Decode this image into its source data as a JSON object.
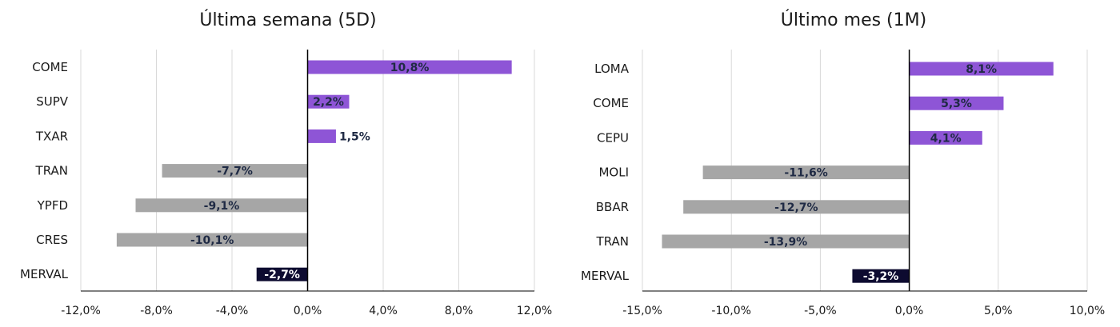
{
  "colors": {
    "positive": "#8e55d6",
    "negative": "#a6a6a6",
    "index": "#0d0b30",
    "label_dark": "#1f2a44",
    "label_light": "#ffffff"
  },
  "chart_data": [
    {
      "type": "bar",
      "orientation": "horizontal",
      "title": "Última semana (5D)",
      "categories": [
        "COME",
        "SUPV",
        "TXAR",
        "TRAN",
        "YPFD",
        "CRES",
        "MERVAL"
      ],
      "values": [
        10.8,
        2.2,
        1.5,
        -7.7,
        -9.1,
        -10.1,
        -2.7
      ],
      "data_labels": [
        "10,8%",
        "2,2%",
        "1,5%",
        "-7,7%",
        "-9,1%",
        "-10,1%",
        "-2,7%"
      ],
      "xlim": [
        -12,
        12
      ],
      "xticks": [
        -12,
        -8,
        -4,
        0,
        4,
        8,
        12
      ],
      "xtick_labels": [
        "-12,0%",
        "-8,0%",
        "-4,0%",
        "0,0%",
        "4,0%",
        "8,0%",
        "12,0%"
      ],
      "grid": true,
      "legend": "none"
    },
    {
      "type": "bar",
      "orientation": "horizontal",
      "title": "Último mes (1M)",
      "categories": [
        "LOMA",
        "COME",
        "CEPU",
        "MOLI",
        "BBAR",
        "TRAN",
        "MERVAL"
      ],
      "values": [
        8.1,
        5.3,
        4.1,
        -11.6,
        -12.7,
        -13.9,
        -3.2
      ],
      "data_labels": [
        "8,1%",
        "5,3%",
        "4,1%",
        "-11,6%",
        "-12,7%",
        "-13,9%",
        "-3,2%"
      ],
      "xlim": [
        -15,
        10
      ],
      "xticks": [
        -15,
        -10,
        -5,
        0,
        5,
        10
      ],
      "xtick_labels": [
        "-15,0%",
        "-10,0%",
        "-5,0%",
        "0,0%",
        "5,0%",
        "10,0%"
      ],
      "grid": true,
      "legend": "none"
    }
  ]
}
